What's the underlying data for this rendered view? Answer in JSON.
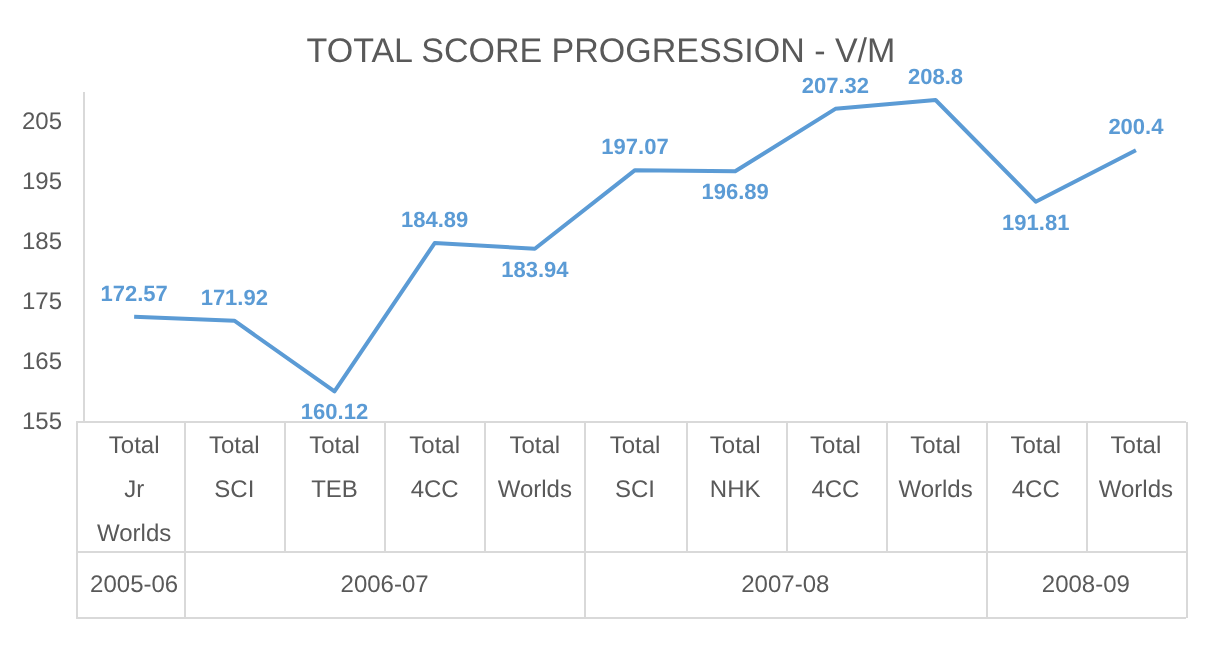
{
  "chart_data": {
    "type": "line",
    "title": "TOTAL SCORE PROGRESSION - V/M",
    "categories": [
      "Total Jr Worlds",
      "Total SCI",
      "Total TEB",
      "Total 4CC",
      "Total Worlds",
      "Total SCI",
      "Total NHK",
      "Total 4CC",
      "Total Worlds",
      "Total 4CC",
      "Total Worlds"
    ],
    "series": [
      {
        "color": "#5b9bd5",
        "values": [
          172.57,
          171.92,
          160.12,
          184.89,
          183.94,
          197.07,
          196.89,
          207.32,
          208.8,
          191.81,
          200.4
        ]
      }
    ],
    "ylim": [
      155,
      210
    ],
    "yticks": [
      155,
      165,
      175,
      185,
      195,
      205
    ],
    "grid": false,
    "legend": false,
    "marker": "none",
    "line_style": "solid",
    "data_labels": true,
    "annotations": [
      "2005-06",
      "2006-07",
      "2007-08",
      "2008-09"
    ]
  }
}
